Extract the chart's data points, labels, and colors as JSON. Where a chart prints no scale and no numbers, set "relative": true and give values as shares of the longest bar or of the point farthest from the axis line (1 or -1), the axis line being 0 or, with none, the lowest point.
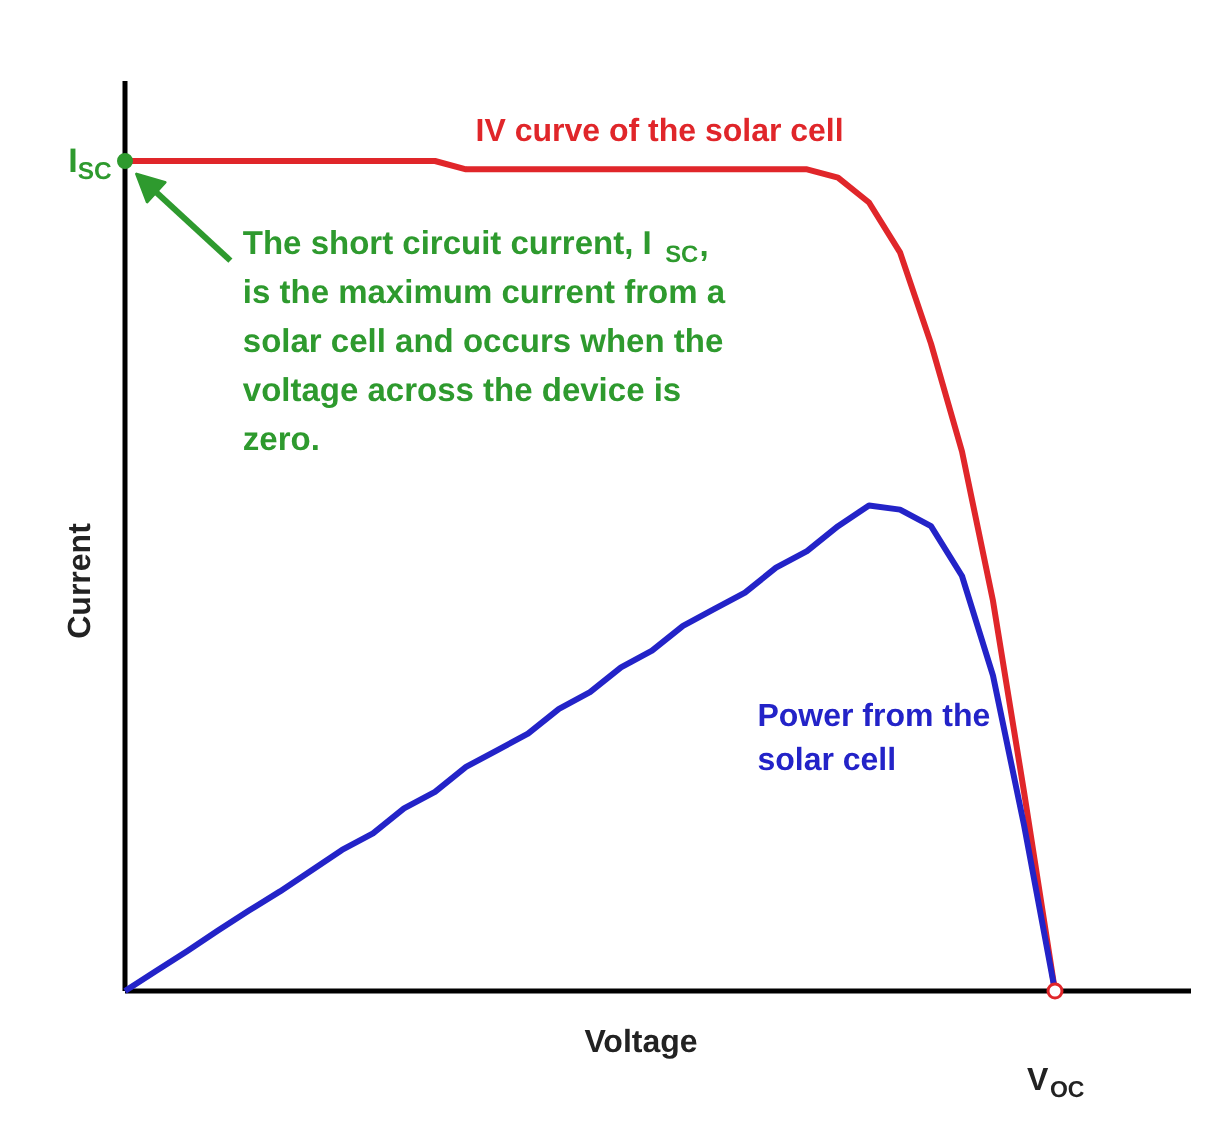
{
  "chart_data": {
    "type": "line",
    "relative": true,
    "xlabel": "Voltage",
    "ylabel": "Current",
    "categories": [
      null,
      null,
      null,
      null,
      null,
      null,
      null,
      null,
      null,
      null,
      null,
      null,
      null,
      null,
      null,
      null,
      null,
      null,
      null,
      null,
      null,
      null,
      null,
      null,
      null,
      null,
      null,
      null,
      null,
      null,
      null
    ],
    "series": [
      {
        "name": "IV curve of the solar cell",
        "color": "#e0262a",
        "values": [
          1.0,
          1.0,
          1.0,
          1.0,
          1.0,
          1.0,
          1.0,
          1.0,
          1.0,
          1.0,
          1.0,
          0.99,
          0.99,
          0.99,
          0.99,
          0.99,
          0.99,
          0.99,
          0.99,
          0.99,
          0.99,
          0.99,
          0.99,
          0.98,
          0.95,
          0.89,
          0.78,
          0.65,
          0.47,
          0.24,
          0
        ]
      },
      {
        "name": "Power from the solar cell",
        "color": "#2323c8",
        "values": [
          0,
          0.024,
          0.048,
          0.073,
          0.097,
          0.12,
          0.145,
          0.17,
          0.19,
          0.22,
          0.24,
          0.27,
          0.29,
          0.31,
          0.34,
          0.36,
          0.39,
          0.41,
          0.44,
          0.46,
          0.48,
          0.51,
          0.53,
          0.56,
          0.585,
          0.58,
          0.56,
          0.5,
          0.38,
          0.2,
          0
        ]
      }
    ],
    "annotations": [
      "I$_{SC}$",
      {
        "text": "V$_{OC}$",
        "y": 0
      },
      "The short circuit current, I$_{SC}$, is the maximum current from a solar cell and occurs when the voltage across the device is zero."
    ],
    "marker": "none",
    "line_style": "solid"
  }
}
